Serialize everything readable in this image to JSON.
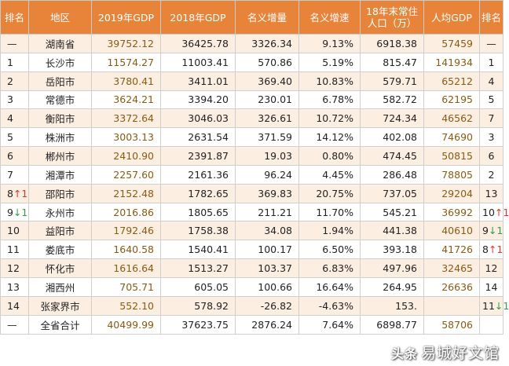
{
  "headers": [
    "排名",
    "地区",
    "2019年GDP",
    "2018年GDP",
    "名义增量",
    "名义增速",
    "18年末常住\n人口（万）",
    "人均GDP",
    "排名"
  ],
  "rows": [
    {
      "rank": "—",
      "rank_arrow": "",
      "rank_dir": "",
      "region": "湖南省",
      "gdp2019": "39752.12",
      "gdp2018": "36425.78",
      "increment": "3326.34",
      "growth": "9.13%",
      "population": "6918.38",
      "per_capita": "57459",
      "pc_rank": "—",
      "pc_arrow": "",
      "pc_dir": ""
    },
    {
      "rank": "1",
      "rank_arrow": "",
      "rank_dir": "",
      "region": "长沙市",
      "gdp2019": "11574.27",
      "gdp2018": "11003.41",
      "increment": "570.86",
      "growth": "5.19%",
      "population": "815.47",
      "per_capita": "141934",
      "pc_rank": "1",
      "pc_arrow": "",
      "pc_dir": ""
    },
    {
      "rank": "2",
      "rank_arrow": "",
      "rank_dir": "",
      "region": "岳阳市",
      "gdp2019": "3780.41",
      "gdp2018": "3411.01",
      "increment": "369.40",
      "growth": "10.83%",
      "population": "579.71",
      "per_capita": "65212",
      "pc_rank": "4",
      "pc_arrow": "",
      "pc_dir": ""
    },
    {
      "rank": "3",
      "rank_arrow": "",
      "rank_dir": "",
      "region": "常德市",
      "gdp2019": "3624.21",
      "gdp2018": "3394.20",
      "increment": "230.01",
      "growth": "6.78%",
      "population": "582.72",
      "per_capita": "62195",
      "pc_rank": "5",
      "pc_arrow": "",
      "pc_dir": ""
    },
    {
      "rank": "4",
      "rank_arrow": "",
      "rank_dir": "",
      "region": "衡阳市",
      "gdp2019": "3372.64",
      "gdp2018": "3046.03",
      "increment": "326.61",
      "growth": "10.72%",
      "population": "724.34",
      "per_capita": "46562",
      "pc_rank": "7",
      "pc_arrow": "",
      "pc_dir": ""
    },
    {
      "rank": "5",
      "rank_arrow": "",
      "rank_dir": "",
      "region": "株洲市",
      "gdp2019": "3003.13",
      "gdp2018": "2631.54",
      "increment": "371.59",
      "growth": "14.12%",
      "population": "402.08",
      "per_capita": "74690",
      "pc_rank": "3",
      "pc_arrow": "",
      "pc_dir": ""
    },
    {
      "rank": "6",
      "rank_arrow": "",
      "rank_dir": "",
      "region": "郴州市",
      "gdp2019": "2410.90",
      "gdp2018": "2391.87",
      "increment": "19.03",
      "growth": "0.80%",
      "population": "474.45",
      "per_capita": "50815",
      "pc_rank": "6",
      "pc_arrow": "",
      "pc_dir": ""
    },
    {
      "rank": "7",
      "rank_arrow": "",
      "rank_dir": "",
      "region": "湘潭市",
      "gdp2019": "2257.60",
      "gdp2018": "2161.36",
      "increment": "96.24",
      "growth": "4.45%",
      "population": "286.48",
      "per_capita": "78805",
      "pc_rank": "2",
      "pc_arrow": "",
      "pc_dir": ""
    },
    {
      "rank": "8",
      "rank_arrow": "↑1",
      "rank_dir": "up",
      "region": "邵阳市",
      "gdp2019": "2152.48",
      "gdp2018": "1782.65",
      "increment": "369.83",
      "growth": "20.75%",
      "population": "737.05",
      "per_capita": "29204",
      "pc_rank": "13",
      "pc_arrow": "",
      "pc_dir": ""
    },
    {
      "rank": "9",
      "rank_arrow": "↓1",
      "rank_dir": "down",
      "region": "永州市",
      "gdp2019": "2016.86",
      "gdp2018": "1805.65",
      "increment": "211.21",
      "growth": "11.70%",
      "population": "545.21",
      "per_capita": "36992",
      "pc_rank": "10",
      "pc_arrow": "↑1",
      "pc_dir": "up"
    },
    {
      "rank": "10",
      "rank_arrow": "",
      "rank_dir": "",
      "region": "益阳市",
      "gdp2019": "1792.46",
      "gdp2018": "1758.38",
      "increment": "34.08",
      "growth": "1.94%",
      "population": "441.38",
      "per_capita": "40610",
      "pc_rank": "9",
      "pc_arrow": "↓1",
      "pc_dir": "down"
    },
    {
      "rank": "11",
      "rank_arrow": "",
      "rank_dir": "",
      "region": "娄底市",
      "gdp2019": "1640.58",
      "gdp2018": "1540.41",
      "increment": "100.17",
      "growth": "6.50%",
      "population": "393.18",
      "per_capita": "41726",
      "pc_rank": "8",
      "pc_arrow": "↑1",
      "pc_dir": "up"
    },
    {
      "rank": "12",
      "rank_arrow": "",
      "rank_dir": "",
      "region": "怀化市",
      "gdp2019": "1616.64",
      "gdp2018": "1513.27",
      "increment": "103.37",
      "growth": "6.83%",
      "population": "497.96",
      "per_capita": "32465",
      "pc_rank": "12",
      "pc_arrow": "",
      "pc_dir": ""
    },
    {
      "rank": "13",
      "rank_arrow": "",
      "rank_dir": "",
      "region": "湘西州",
      "gdp2019": "705.71",
      "gdp2018": "605.05",
      "increment": "100.66",
      "growth": "16.64%",
      "population": "264.95",
      "per_capita": "26636",
      "pc_rank": "14",
      "pc_arrow": "",
      "pc_dir": ""
    },
    {
      "rank": "14",
      "rank_arrow": "",
      "rank_dir": "",
      "region": "张家界市",
      "gdp2019": "552.10",
      "gdp2018": "578.92",
      "increment": "-26.82",
      "growth": "-4.63%",
      "population": "153.",
      "per_capita": "",
      "pc_rank": "11",
      "pc_arrow": "↓1",
      "pc_dir": "down"
    },
    {
      "rank": "—",
      "rank_arrow": "",
      "rank_dir": "",
      "region": "全省合计",
      "gdp2019": "40499.99",
      "gdp2018": "37623.75",
      "increment": "2876.24",
      "growth": "7.64%",
      "population": "6898.77",
      "per_capita": "58706",
      "pc_rank": "",
      "pc_arrow": "",
      "pc_dir": ""
    }
  ],
  "watermark": {
    "prefix": "头条",
    "text": "易城好文馆"
  },
  "colors": {
    "header_bg": "#e8833a",
    "row_stripe": "#fdeee2",
    "up_arrow": "#d8392b",
    "down_arrow": "#2e9e48"
  }
}
